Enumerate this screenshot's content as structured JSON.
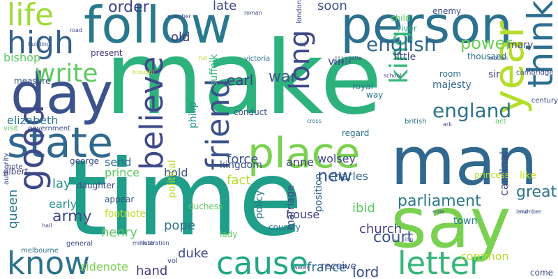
{
  "wordcloud": {
    "background": "#ffffff",
    "palette": [
      "#440154",
      "#3b528b",
      "#21918c",
      "#2a9d8f",
      "#5ec962",
      "#b5de2b",
      "#fde725"
    ],
    "words": [
      {
        "text": "make",
        "color": "#2db27d"
      },
      {
        "text": "time",
        "color": "#1f9e89"
      },
      {
        "text": "follow",
        "color": "#2a788e"
      },
      {
        "text": "person",
        "color": "#2c728e"
      },
      {
        "text": "say",
        "color": "#7ad151"
      },
      {
        "text": "man",
        "color": "#31688e"
      },
      {
        "text": "day",
        "color": "#3b528b"
      },
      {
        "text": "state",
        "color": "#31688e"
      },
      {
        "text": "place",
        "color": "#7ad151"
      },
      {
        "text": "year",
        "color": "#b5de2b"
      },
      {
        "text": "think",
        "color": "#2e6e8e"
      },
      {
        "text": "cause",
        "color": "#22a884"
      },
      {
        "text": "letter",
        "color": "#35b779"
      },
      {
        "text": "know",
        "color": "#2c728e"
      },
      {
        "text": "good",
        "color": "#3e4989"
      },
      {
        "text": "believe",
        "color": "#3e4989"
      },
      {
        "text": "friend",
        "color": "#3b528b"
      },
      {
        "text": "high",
        "color": "#34618d"
      },
      {
        "text": "life",
        "color": "#a0da39"
      },
      {
        "text": "write",
        "color": "#5ec962"
      },
      {
        "text": "long",
        "color": "#3e4989"
      },
      {
        "text": "king",
        "color": "#35b779"
      },
      {
        "text": "england",
        "color": "#2c728e"
      },
      {
        "text": "english",
        "color": "#31688e"
      },
      {
        "text": "power",
        "color": "#6ccd5a"
      },
      {
        "text": "order",
        "color": "#414487"
      },
      {
        "text": "war",
        "color": "#3b528b"
      },
      {
        "text": "soon",
        "color": "#3b528b"
      },
      {
        "text": "old",
        "color": "#443983"
      },
      {
        "text": "late",
        "color": "#3e4989"
      },
      {
        "text": "earl",
        "color": "#433e85"
      },
      {
        "text": "new",
        "color": "#3b528b"
      },
      {
        "text": "parliament",
        "color": "#2a788e"
      },
      {
        "text": "great",
        "color": "#2c728e"
      },
      {
        "text": "court",
        "color": "#3b528b"
      },
      {
        "text": "church",
        "color": "#433e85"
      },
      {
        "text": "army",
        "color": "#3e4989"
      },
      {
        "text": "early",
        "color": "#21918c"
      },
      {
        "text": "henry",
        "color": "#5ec962"
      },
      {
        "text": "queen",
        "color": "#2a788e"
      },
      {
        "text": "footnote",
        "color": "#bddf26"
      },
      {
        "text": "pope",
        "color": "#2c728e"
      },
      {
        "text": "hold",
        "color": "#3b528b"
      },
      {
        "text": "duke",
        "color": "#3e4989"
      },
      {
        "text": "lord",
        "color": "#3b528b"
      },
      {
        "text": "france",
        "color": "#31688e"
      },
      {
        "text": "receive",
        "color": "#3e4989"
      },
      {
        "text": "hand",
        "color": "#433e85"
      },
      {
        "text": "sidenote",
        "color": "#7ad151"
      },
      {
        "text": "common",
        "color": "#b5de2b"
      },
      {
        "text": "town",
        "color": "#2a788e"
      },
      {
        "text": "like",
        "color": "#bddf26"
      },
      {
        "text": "come",
        "color": "#3e4989"
      },
      {
        "text": "cardinal",
        "color": "#3e4989"
      },
      {
        "text": "prince",
        "color": "#5ec962"
      },
      {
        "text": "send",
        "color": "#31688e"
      },
      {
        "text": "lay",
        "color": "#21918c"
      },
      {
        "text": "force",
        "color": "#3b528b"
      },
      {
        "text": "fact",
        "color": "#b5de2b"
      },
      {
        "text": "anne",
        "color": "#443983"
      },
      {
        "text": "wolsey",
        "color": "#3e4989"
      },
      {
        "text": "charles",
        "color": "#31688e"
      },
      {
        "text": "house",
        "color": "#433e85"
      },
      {
        "text": "ibid",
        "color": "#5ec962"
      },
      {
        "text": "policy",
        "color": "#2a788e"
      },
      {
        "text": "position",
        "color": "#31688e"
      },
      {
        "text": "marriage",
        "color": "#3e4989"
      },
      {
        "text": "political",
        "color": "#b5de2b"
      },
      {
        "text": "kingdom",
        "color": "#3b528b"
      },
      {
        "text": "philip",
        "color": "#21918c"
      },
      {
        "text": "suffolk",
        "color": "#35b779"
      },
      {
        "text": "elizabeth",
        "color": "#2a788e"
      },
      {
        "text": "bishop",
        "color": "#5ec962"
      },
      {
        "text": "measure",
        "color": "#3b528b"
      },
      {
        "text": "present",
        "color": "#443983"
      },
      {
        "text": "viii",
        "color": "#3b528b"
      },
      {
        "text": "little",
        "color": "#414487"
      },
      {
        "text": "mary",
        "color": "#3e4989"
      },
      {
        "text": "thousand",
        "color": "#2c728e"
      },
      {
        "text": "room",
        "color": "#2c728e"
      },
      {
        "text": "majesty",
        "color": "#31688e"
      },
      {
        "text": "sir",
        "color": "#433e85"
      },
      {
        "text": "cambridge",
        "color": "#3e4989"
      },
      {
        "text": "royal",
        "color": "#2a788e"
      },
      {
        "text": "way",
        "color": "#2a788e"
      },
      {
        "text": "regard",
        "color": "#2c728e"
      },
      {
        "text": "conduct",
        "color": "#3b528b"
      },
      {
        "text": "victoria",
        "color": "#2c728e"
      },
      {
        "text": "country",
        "color": "#2c728e"
      },
      {
        "text": "appear",
        "color": "#3b528b"
      },
      {
        "text": "duchess",
        "color": "#5ec962"
      },
      {
        "text": "daughter",
        "color": "#3e4989"
      },
      {
        "text": "george",
        "color": "#3e4989"
      },
      {
        "text": "albert",
        "color": "#433e85"
      },
      {
        "text": "authority",
        "color": "#3e4989"
      },
      {
        "text": "note",
        "color": "#3e4989"
      },
      {
        "text": "visit",
        "color": "#5ec962"
      },
      {
        "text": "government",
        "color": "#3b528b"
      },
      {
        "text": "melbourne",
        "color": "#2c728e"
      },
      {
        "text": "lady",
        "color": "#5ec962"
      },
      {
        "text": "vol",
        "color": "#3e4989"
      },
      {
        "text": "general",
        "color": "#3e4989"
      },
      {
        "text": "minister",
        "color": "#3e4989"
      },
      {
        "text": "illustration",
        "color": "#3e4989"
      },
      {
        "text": "princess",
        "color": "#b5de2b"
      },
      {
        "text": "british",
        "color": "#2c728e"
      },
      {
        "text": "act",
        "color": "#5ec962"
      },
      {
        "text": "century",
        "color": "#3e4989"
      },
      {
        "text": "enemy",
        "color": "#3e4989"
      },
      {
        "text": "child",
        "color": "#5ec962"
      },
      {
        "text": "river",
        "color": "#35b779"
      },
      {
        "text": "motion",
        "color": "#3b528b"
      },
      {
        "text": "member",
        "color": "#3e4989"
      },
      {
        "text": "building",
        "color": "#3b528b"
      },
      {
        "text": "road",
        "color": "#3e4989"
      },
      {
        "text": "london",
        "color": "#3e4989"
      },
      {
        "text": "iii",
        "color": "#3e4989"
      },
      {
        "text": "bridge",
        "color": "#3e4989"
      },
      {
        "text": "castle",
        "color": "#3e4989"
      },
      {
        "text": "roman",
        "color": "#3e4989"
      },
      {
        "text": "number",
        "color": "#3e4989"
      },
      {
        "text": "cross",
        "color": "#2c728e"
      },
      {
        "text": "hall",
        "color": "#3e4989"
      },
      {
        "text": "inn",
        "color": "#3e4989"
      },
      {
        "text": "water",
        "color": "#3e4989"
      },
      {
        "text": "full",
        "color": "#b5de2b"
      },
      {
        "text": "brought",
        "color": "#b5de2b"
      },
      {
        "text": "school",
        "color": "#3e4989"
      },
      {
        "text": "ark",
        "color": "#3e4989"
      },
      {
        "text": "mile",
        "color": "#3e4989"
      },
      {
        "text": "land",
        "color": "#3e4989"
      }
    ]
  }
}
